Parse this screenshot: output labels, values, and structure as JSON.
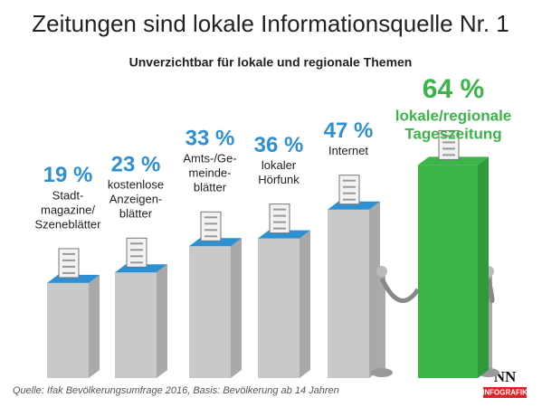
{
  "chart_data": {
    "type": "pillar",
    "title": "Zeitungen sind lokale Informationsquelle Nr. 1",
    "subtitle": "Unverzichtbar für lokale und regionale Themen",
    "categories": [
      [
        "Stadt-",
        "magazine/",
        "Szeneblätter"
      ],
      [
        "kostenlose",
        "Anzeigen-",
        "blätter"
      ],
      [
        "Amts-/Ge-",
        "meinde-",
        "blätter"
      ],
      [
        "lokaler",
        "Hörfunk"
      ],
      [
        "Internet"
      ],
      [
        "lokale/regionale",
        "Tageszeitung"
      ]
    ],
    "values": [
      19,
      23,
      33,
      36,
      47,
      64
    ],
    "value_labels": [
      "19 %",
      "23 %",
      "33 %",
      "36 %",
      "47 %",
      "64 %"
    ],
    "colors": [
      "#2f8fd3",
      "#2f8fd3",
      "#2f8fd3",
      "#2f8fd3",
      "#2f8fd3",
      "#3cb44a"
    ],
    "source": "Quelle: Ifak Bevölkerungsumfrage 2016, Basis: Bevölkerung ab 14 Jahren",
    "logo": {
      "name": "NN",
      "sub": "INFOGRAFIK"
    }
  }
}
